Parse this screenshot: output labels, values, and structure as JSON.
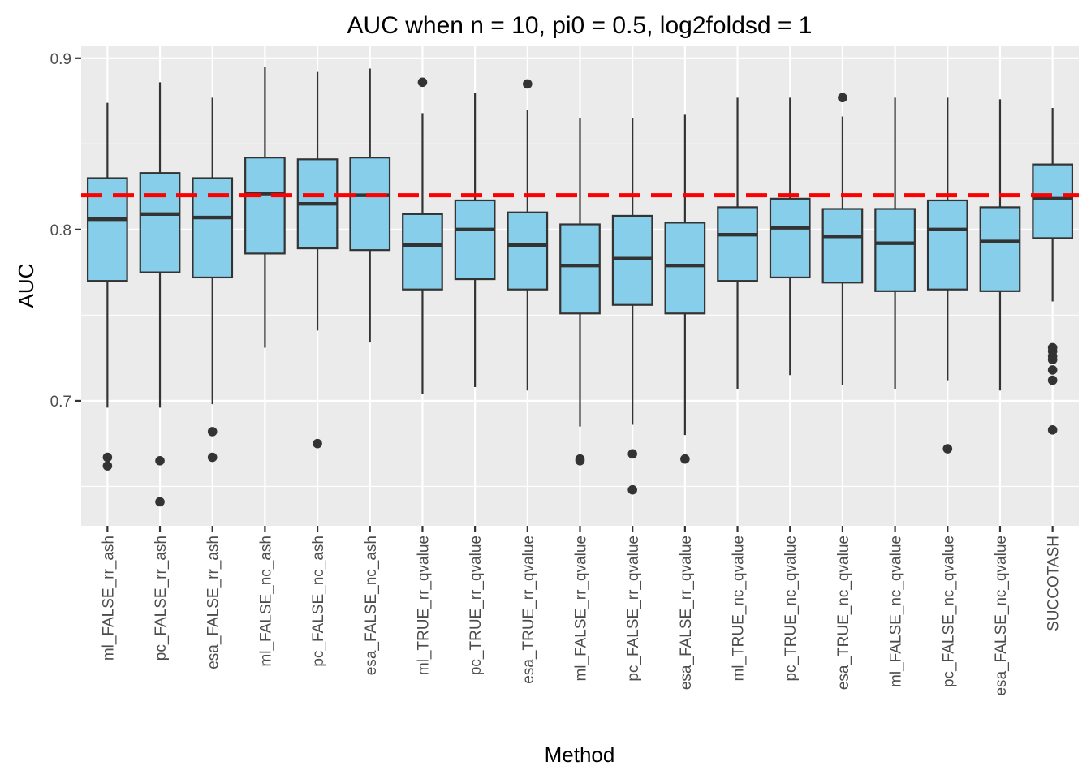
{
  "chart_data": {
    "type": "boxplot",
    "title": "AUC when n = 10, pi0 = 0.5, log2foldsd = 1",
    "xlabel": "Method",
    "ylabel": "AUC",
    "ylim": [
      0.627,
      0.907
    ],
    "yticks": [
      0.7,
      0.8,
      0.9
    ],
    "ytick_labels": [
      "0.7",
      "0.8",
      "0.9"
    ],
    "grid": true,
    "reference_line": {
      "y": 0.82,
      "style": "dashed",
      "color": "#ff0000"
    },
    "colors": {
      "box_fill": "#87ceeb",
      "box_stroke": "#333333",
      "panel": "#ebebeb",
      "grid": "#ffffff",
      "outlier": "#333333"
    },
    "categories": [
      "ml_FALSE_rr_ash",
      "pc_FALSE_rr_ash",
      "esa_FALSE_rr_ash",
      "ml_FALSE_nc_ash",
      "pc_FALSE_nc_ash",
      "esa_FALSE_nc_ash",
      "ml_TRUE_rr_qvalue",
      "pc_TRUE_rr_qvalue",
      "esa_TRUE_rr_qvalue",
      "ml_FALSE_rr_qvalue",
      "pc_FALSE_rr_qvalue",
      "esa_FALSE_rr_qvalue",
      "ml_TRUE_nc_qvalue",
      "pc_TRUE_nc_qvalue",
      "esa_TRUE_nc_qvalue",
      "ml_FALSE_nc_qvalue",
      "pc_FALSE_nc_qvalue",
      "esa_FALSE_nc_qvalue",
      "SUCCOTASH"
    ],
    "boxes": [
      {
        "whisker_low": 0.696,
        "q1": 0.77,
        "median": 0.806,
        "q3": 0.83,
        "whisker_high": 0.874,
        "outliers": [
          0.667,
          0.662
        ]
      },
      {
        "whisker_low": 0.696,
        "q1": 0.775,
        "median": 0.809,
        "q3": 0.833,
        "whisker_high": 0.886,
        "outliers": [
          0.665,
          0.641
        ]
      },
      {
        "whisker_low": 0.698,
        "q1": 0.772,
        "median": 0.807,
        "q3": 0.83,
        "whisker_high": 0.877,
        "outliers": [
          0.682,
          0.667
        ]
      },
      {
        "whisker_low": 0.731,
        "q1": 0.786,
        "median": 0.821,
        "q3": 0.842,
        "whisker_high": 0.895,
        "outliers": []
      },
      {
        "whisker_low": 0.741,
        "q1": 0.789,
        "median": 0.815,
        "q3": 0.841,
        "whisker_high": 0.892,
        "outliers": [
          0.675
        ]
      },
      {
        "whisker_low": 0.734,
        "q1": 0.788,
        "median": 0.82,
        "q3": 0.842,
        "whisker_high": 0.894,
        "outliers": []
      },
      {
        "whisker_low": 0.704,
        "q1": 0.765,
        "median": 0.791,
        "q3": 0.809,
        "whisker_high": 0.868,
        "outliers": [
          0.886
        ]
      },
      {
        "whisker_low": 0.708,
        "q1": 0.771,
        "median": 0.8,
        "q3": 0.817,
        "whisker_high": 0.88,
        "outliers": []
      },
      {
        "whisker_low": 0.706,
        "q1": 0.765,
        "median": 0.791,
        "q3": 0.81,
        "whisker_high": 0.87,
        "outliers": [
          0.885
        ]
      },
      {
        "whisker_low": 0.685,
        "q1": 0.751,
        "median": 0.779,
        "q3": 0.803,
        "whisker_high": 0.865,
        "outliers": [
          0.666,
          0.665
        ]
      },
      {
        "whisker_low": 0.686,
        "q1": 0.756,
        "median": 0.783,
        "q3": 0.808,
        "whisker_high": 0.865,
        "outliers": [
          0.669,
          0.648
        ]
      },
      {
        "whisker_low": 0.68,
        "q1": 0.751,
        "median": 0.779,
        "q3": 0.804,
        "whisker_high": 0.867,
        "outliers": [
          0.666
        ]
      },
      {
        "whisker_low": 0.707,
        "q1": 0.77,
        "median": 0.797,
        "q3": 0.813,
        "whisker_high": 0.877,
        "outliers": []
      },
      {
        "whisker_low": 0.715,
        "q1": 0.772,
        "median": 0.801,
        "q3": 0.818,
        "whisker_high": 0.877,
        "outliers": []
      },
      {
        "whisker_low": 0.709,
        "q1": 0.769,
        "median": 0.796,
        "q3": 0.812,
        "whisker_high": 0.866,
        "outliers": [
          0.877
        ]
      },
      {
        "whisker_low": 0.707,
        "q1": 0.764,
        "median": 0.792,
        "q3": 0.812,
        "whisker_high": 0.877,
        "outliers": []
      },
      {
        "whisker_low": 0.712,
        "q1": 0.765,
        "median": 0.8,
        "q3": 0.817,
        "whisker_high": 0.877,
        "outliers": [
          0.672
        ]
      },
      {
        "whisker_low": 0.706,
        "q1": 0.764,
        "median": 0.793,
        "q3": 0.813,
        "whisker_high": 0.876,
        "outliers": []
      },
      {
        "whisker_low": 0.758,
        "q1": 0.795,
        "median": 0.818,
        "q3": 0.838,
        "whisker_high": 0.871,
        "outliers": [
          0.731,
          0.729,
          0.726,
          0.724,
          0.718,
          0.712,
          0.683
        ]
      }
    ]
  }
}
